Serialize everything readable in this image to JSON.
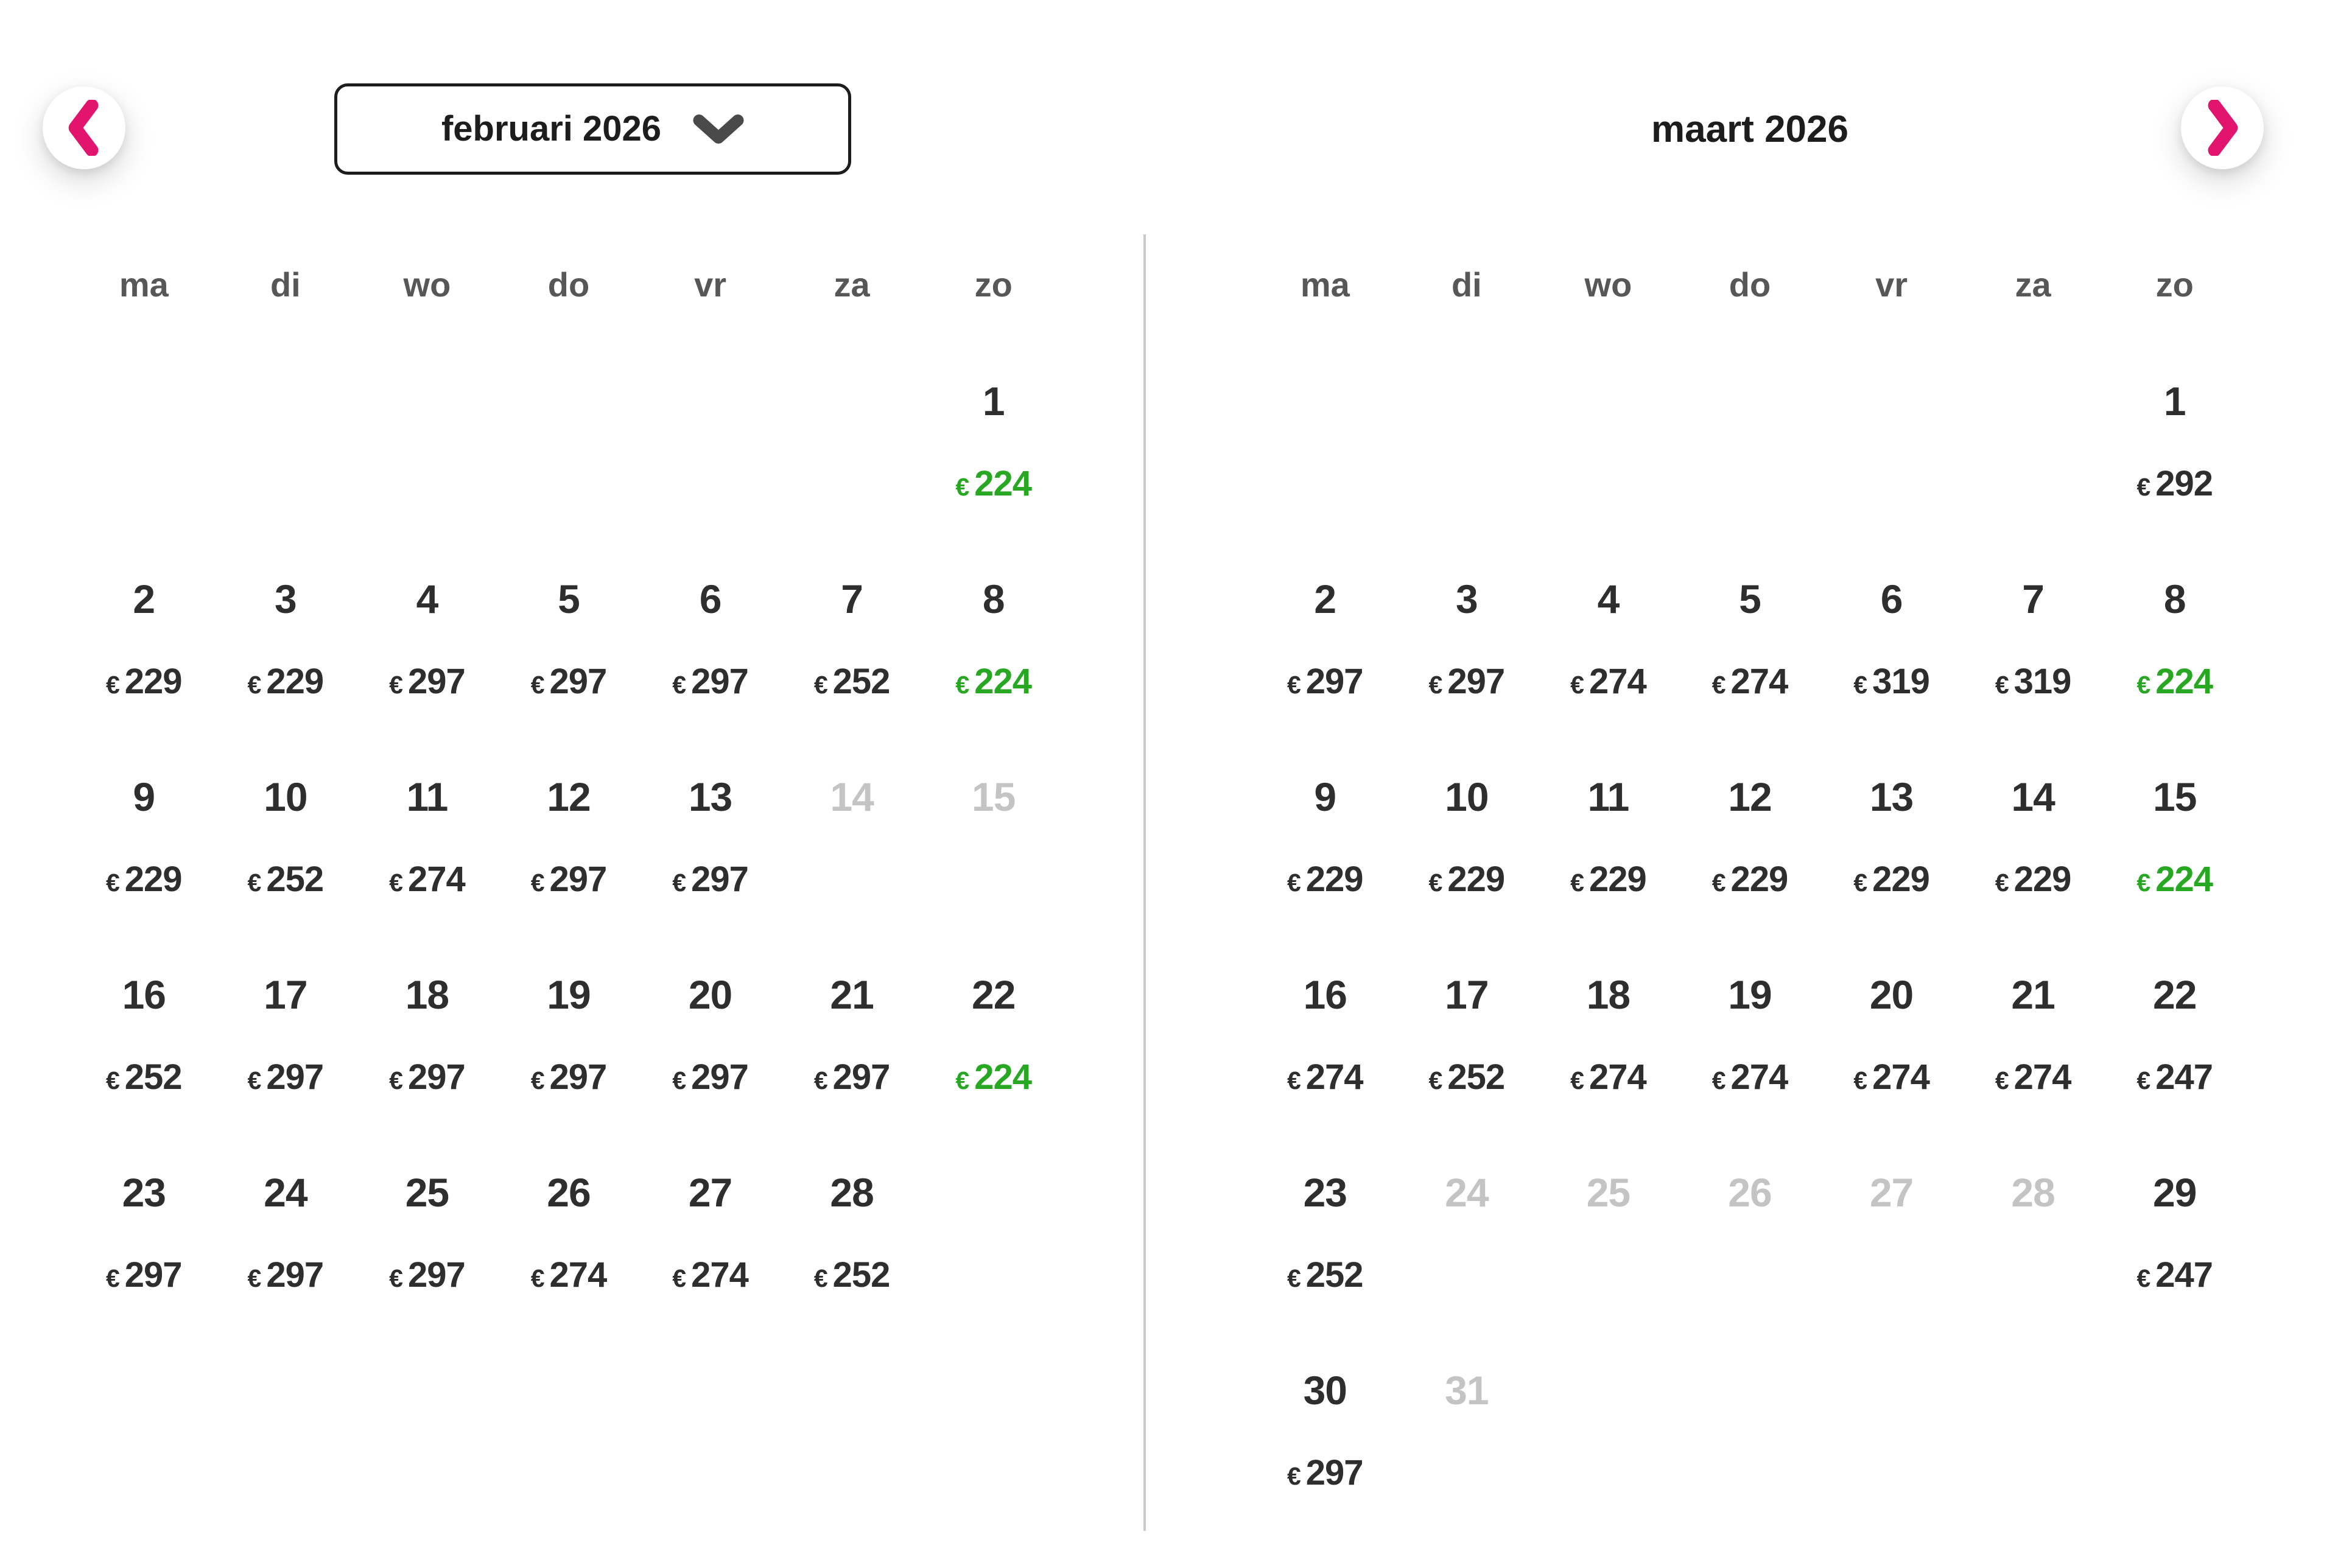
{
  "currency": "€",
  "colors": {
    "accent_pink": "#e2146e",
    "deal_green": "#28a723",
    "day_text": "#2e2e2e",
    "weekday_gray": "#575757",
    "disabled_gray": "#c4c4c4",
    "divider_gray": "#c9c9c9"
  },
  "icons": {
    "prev": "chevron-left-icon",
    "next": "chevron-right-icon",
    "month_selector": "chevron-down-icon"
  },
  "weekdays": [
    "ma",
    "di",
    "wo",
    "do",
    "vr",
    "za",
    "zo"
  ],
  "calendars": [
    {
      "title": "februari 2026",
      "weeks": [
        [
          null,
          null,
          null,
          null,
          null,
          null,
          {
            "d": "1",
            "p": "224",
            "s": "deal"
          }
        ],
        [
          {
            "d": "2",
            "p": "229"
          },
          {
            "d": "3",
            "p": "229"
          },
          {
            "d": "4",
            "p": "297"
          },
          {
            "d": "5",
            "p": "297"
          },
          {
            "d": "6",
            "p": "297"
          },
          {
            "d": "7",
            "p": "252"
          },
          {
            "d": "8",
            "p": "224",
            "s": "deal"
          }
        ],
        [
          {
            "d": "9",
            "p": "229"
          },
          {
            "d": "10",
            "p": "252"
          },
          {
            "d": "11",
            "p": "274"
          },
          {
            "d": "12",
            "p": "297"
          },
          {
            "d": "13",
            "p": "297"
          },
          {
            "d": "14",
            "s": "disabled"
          },
          {
            "d": "15",
            "s": "disabled"
          }
        ],
        [
          {
            "d": "16",
            "p": "252"
          },
          {
            "d": "17",
            "p": "297"
          },
          {
            "d": "18",
            "p": "297"
          },
          {
            "d": "19",
            "p": "297"
          },
          {
            "d": "20",
            "p": "297"
          },
          {
            "d": "21",
            "p": "297"
          },
          {
            "d": "22",
            "p": "224",
            "s": "deal"
          }
        ],
        [
          {
            "d": "23",
            "p": "297"
          },
          {
            "d": "24",
            "p": "297"
          },
          {
            "d": "25",
            "p": "297"
          },
          {
            "d": "26",
            "p": "274"
          },
          {
            "d": "27",
            "p": "274"
          },
          {
            "d": "28",
            "p": "252"
          },
          null
        ]
      ]
    },
    {
      "title": "maart 2026",
      "weeks": [
        [
          null,
          null,
          null,
          null,
          null,
          null,
          {
            "d": "1",
            "p": "292"
          }
        ],
        [
          {
            "d": "2",
            "p": "297"
          },
          {
            "d": "3",
            "p": "297"
          },
          {
            "d": "4",
            "p": "274"
          },
          {
            "d": "5",
            "p": "274"
          },
          {
            "d": "6",
            "p": "319"
          },
          {
            "d": "7",
            "p": "319"
          },
          {
            "d": "8",
            "p": "224",
            "s": "deal"
          }
        ],
        [
          {
            "d": "9",
            "p": "229"
          },
          {
            "d": "10",
            "p": "229"
          },
          {
            "d": "11",
            "p": "229"
          },
          {
            "d": "12",
            "p": "229"
          },
          {
            "d": "13",
            "p": "229"
          },
          {
            "d": "14",
            "p": "229"
          },
          {
            "d": "15",
            "p": "224",
            "s": "deal"
          }
        ],
        [
          {
            "d": "16",
            "p": "274"
          },
          {
            "d": "17",
            "p": "252"
          },
          {
            "d": "18",
            "p": "274"
          },
          {
            "d": "19",
            "p": "274"
          },
          {
            "d": "20",
            "p": "274"
          },
          {
            "d": "21",
            "p": "274"
          },
          {
            "d": "22",
            "p": "247"
          }
        ],
        [
          {
            "d": "23",
            "p": "252"
          },
          {
            "d": "24",
            "s": "disabled"
          },
          {
            "d": "25",
            "s": "disabled"
          },
          {
            "d": "26",
            "s": "disabled"
          },
          {
            "d": "27",
            "s": "disabled"
          },
          {
            "d": "28",
            "s": "disabled"
          },
          {
            "d": "29",
            "p": "247"
          }
        ],
        [
          {
            "d": "30",
            "p": "297"
          },
          {
            "d": "31",
            "s": "disabled"
          },
          null,
          null,
          null,
          null,
          null
        ]
      ]
    }
  ]
}
